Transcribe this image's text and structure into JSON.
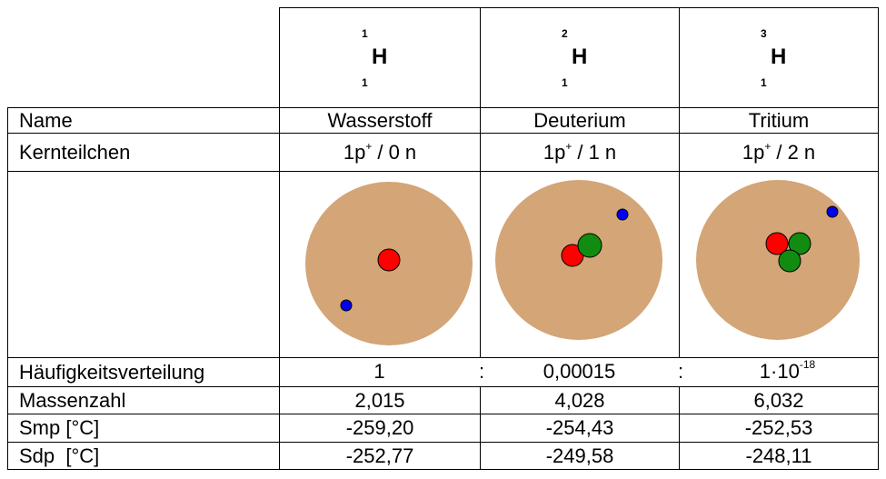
{
  "header": {
    "isotopes": [
      {
        "mass": "1",
        "symbol": "H",
        "atomic": "1"
      },
      {
        "mass": "2",
        "symbol": "H",
        "atomic": "1"
      },
      {
        "mass": "3",
        "symbol": "H",
        "atomic": "1"
      }
    ]
  },
  "table": {
    "name_row": [
      "Name",
      "Wasserstoff",
      "Deuterium",
      "Tritium"
    ],
    "particles_row": {
      "label": "Kernteilchen",
      "cells": [
        {
          "protons": "1p",
          "charge": "+",
          "neutrons": "/ 0 n"
        },
        {
          "protons": "1p",
          "charge": "+",
          "neutrons": "/ 1 n"
        },
        {
          "protons": "1p",
          "charge": "+",
          "neutrons": "/ 2 n"
        }
      ]
    },
    "abundance_row": {
      "label": "Häufigkeitsverteilung",
      "separator": ":",
      "cells": [
        "1",
        "0,00015",
        {
          "base": "1·10",
          "exponent": "-18"
        }
      ]
    },
    "rows": [
      [
        "Massenzahl",
        "2,015",
        "4,028",
        "6,032"
      ],
      [
        "Smp [°C]",
        "-259,20",
        "-254,43",
        "-252,53"
      ],
      [
        "Sdp  [°C]",
        "-252,77",
        "-249,58",
        "-248,11"
      ]
    ]
  }
}
